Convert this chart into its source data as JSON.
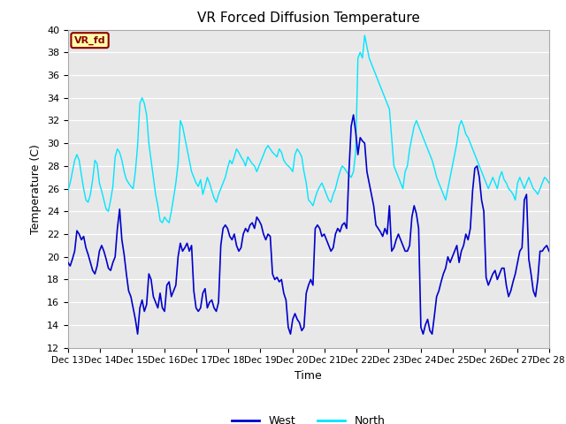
{
  "title": "VR Forced Diffusion Temperature",
  "xlabel": "Time",
  "ylabel": "Temperature (C)",
  "ylim": [
    12,
    40
  ],
  "yticks": [
    12,
    14,
    16,
    18,
    20,
    22,
    24,
    26,
    28,
    30,
    32,
    34,
    36,
    38,
    40
  ],
  "xtick_labels": [
    "Dec 13",
    "Dec 14",
    "Dec 15",
    "Dec 16",
    "Dec 17",
    "Dec 18",
    "Dec 19",
    "Dec 20",
    "Dec 21",
    "Dec 22",
    "Dec 23",
    "Dec 24",
    "Dec 25",
    "Dec 26",
    "Dec 27",
    "Dec 28"
  ],
  "bg_color": "#e8e8e8",
  "fig_bg": "#ffffff",
  "west_color": "#0000cc",
  "north_color": "#00e5ff",
  "annotation_text": "VR_fd",
  "annotation_bg": "#ffffaa",
  "annotation_border": "#8b0000",
  "legend_west": "West",
  "legend_north": "North",
  "west_data": [
    19.5,
    19.2,
    19.8,
    20.5,
    22.3,
    22.0,
    21.5,
    21.8,
    20.8,
    20.2,
    19.5,
    18.8,
    18.5,
    19.2,
    20.5,
    21.0,
    20.5,
    19.8,
    19.0,
    18.8,
    19.5,
    20.0,
    22.5,
    24.2,
    21.5,
    20.2,
    18.5,
    17.0,
    16.5,
    15.5,
    14.5,
    13.2,
    15.5,
    16.2,
    15.2,
    15.8,
    18.5,
    18.0,
    16.5,
    16.0,
    15.5,
    16.8,
    15.5,
    15.2,
    17.5,
    17.8,
    16.5,
    17.0,
    17.5,
    20.0,
    21.2,
    20.5,
    20.8,
    21.2,
    20.5,
    21.0,
    17.0,
    15.5,
    15.2,
    15.5,
    16.8,
    17.2,
    15.5,
    16.0,
    16.2,
    15.5,
    15.2,
    16.0,
    21.0,
    22.5,
    22.8,
    22.5,
    21.8,
    21.5,
    22.0,
    21.0,
    20.5,
    20.8,
    22.0,
    22.5,
    22.2,
    22.8,
    23.0,
    22.5,
    23.5,
    23.2,
    22.8,
    22.0,
    21.5,
    22.0,
    21.8,
    18.5,
    18.0,
    18.2,
    17.8,
    18.0,
    16.8,
    16.2,
    13.8,
    13.2,
    14.5,
    15.0,
    14.5,
    14.2,
    13.5,
    13.8,
    16.8,
    17.5,
    18.0,
    17.5,
    22.5,
    22.8,
    22.5,
    21.8,
    22.0,
    21.5,
    21.0,
    20.5,
    20.8,
    22.0,
    22.5,
    22.2,
    22.8,
    23.0,
    22.5,
    27.5,
    31.5,
    32.5,
    31.0,
    29.0,
    30.5,
    30.2,
    30.0,
    27.5,
    26.5,
    25.5,
    24.5,
    22.8,
    22.5,
    22.2,
    21.8,
    22.5,
    22.0,
    24.5,
    20.5,
    20.8,
    21.5,
    22.0,
    21.5,
    21.0,
    20.5,
    20.5,
    21.0,
    23.5,
    24.5,
    23.8,
    22.5,
    13.8,
    13.2,
    14.0,
    14.5,
    13.5,
    13.2,
    14.8,
    16.5,
    17.0,
    17.8,
    18.5,
    19.0,
    20.0,
    19.5,
    20.0,
    20.5,
    21.0,
    19.5,
    20.5,
    21.0,
    22.0,
    21.5,
    22.5,
    25.8,
    27.8,
    28.0,
    27.0,
    25.0,
    24.0,
    18.2,
    17.5,
    18.0,
    18.5,
    18.8,
    18.0,
    18.5,
    19.0,
    19.0,
    17.5,
    16.5,
    17.0,
    17.8,
    18.5,
    19.5,
    20.5,
    20.8,
    25.0,
    25.5,
    19.8,
    18.5,
    17.0,
    16.5,
    18.0,
    20.5,
    20.5,
    20.8,
    21.0,
    20.5
  ],
  "north_data": [
    25.8,
    26.5,
    27.5,
    28.5,
    29.0,
    28.5,
    27.2,
    26.0,
    25.0,
    24.8,
    25.5,
    26.8,
    28.5,
    28.2,
    26.5,
    25.8,
    25.0,
    24.2,
    24.0,
    25.0,
    26.2,
    28.8,
    29.5,
    29.2,
    28.5,
    27.5,
    26.8,
    26.5,
    26.2,
    26.0,
    27.5,
    29.8,
    33.5,
    34.0,
    33.5,
    32.5,
    30.0,
    28.5,
    27.0,
    25.5,
    24.5,
    23.2,
    23.0,
    23.5,
    23.2,
    23.0,
    24.0,
    25.2,
    26.5,
    28.2,
    32.0,
    31.5,
    30.5,
    29.5,
    28.5,
    27.5,
    27.0,
    26.5,
    26.2,
    26.8,
    25.5,
    26.2,
    27.0,
    26.5,
    25.8,
    25.2,
    24.8,
    25.5,
    26.0,
    26.5,
    27.0,
    27.8,
    28.5,
    28.2,
    28.8,
    29.5,
    29.2,
    28.8,
    28.5,
    28.0,
    28.8,
    28.5,
    28.2,
    28.0,
    27.5,
    28.0,
    28.5,
    29.0,
    29.5,
    29.8,
    29.5,
    29.2,
    29.0,
    28.8,
    29.5,
    29.2,
    28.5,
    28.2,
    28.0,
    27.8,
    27.5,
    29.0,
    29.5,
    29.2,
    28.8,
    27.5,
    26.5,
    25.0,
    24.8,
    24.5,
    25.2,
    25.8,
    26.2,
    26.5,
    26.0,
    25.5,
    25.0,
    24.8,
    25.5,
    26.0,
    26.8,
    27.5,
    28.0,
    27.8,
    27.5,
    27.2,
    27.0,
    27.5,
    29.2,
    37.5,
    38.0,
    37.5,
    39.5,
    38.5,
    37.5,
    37.0,
    36.5,
    36.0,
    35.5,
    35.0,
    34.5,
    34.0,
    33.5,
    33.0,
    30.5,
    28.0,
    27.5,
    27.0,
    26.5,
    26.0,
    27.5,
    28.0,
    29.5,
    30.5,
    31.5,
    32.0,
    31.5,
    31.0,
    30.5,
    30.0,
    29.5,
    29.0,
    28.5,
    27.8,
    27.0,
    26.5,
    26.0,
    25.5,
    25.0,
    26.0,
    27.0,
    28.0,
    29.0,
    30.0,
    31.5,
    32.0,
    31.5,
    30.8,
    30.5,
    30.0,
    29.5,
    29.0,
    28.5,
    28.0,
    27.5,
    27.0,
    26.5,
    26.0,
    26.5,
    27.0,
    26.5,
    26.0,
    27.0,
    27.5,
    26.8,
    26.5,
    26.0,
    25.8,
    25.5,
    25.0,
    26.5,
    27.0,
    26.5,
    26.0,
    26.5,
    27.0,
    26.5,
    26.0,
    25.8,
    25.5,
    26.0,
    26.5,
    27.0,
    26.8,
    26.5
  ]
}
